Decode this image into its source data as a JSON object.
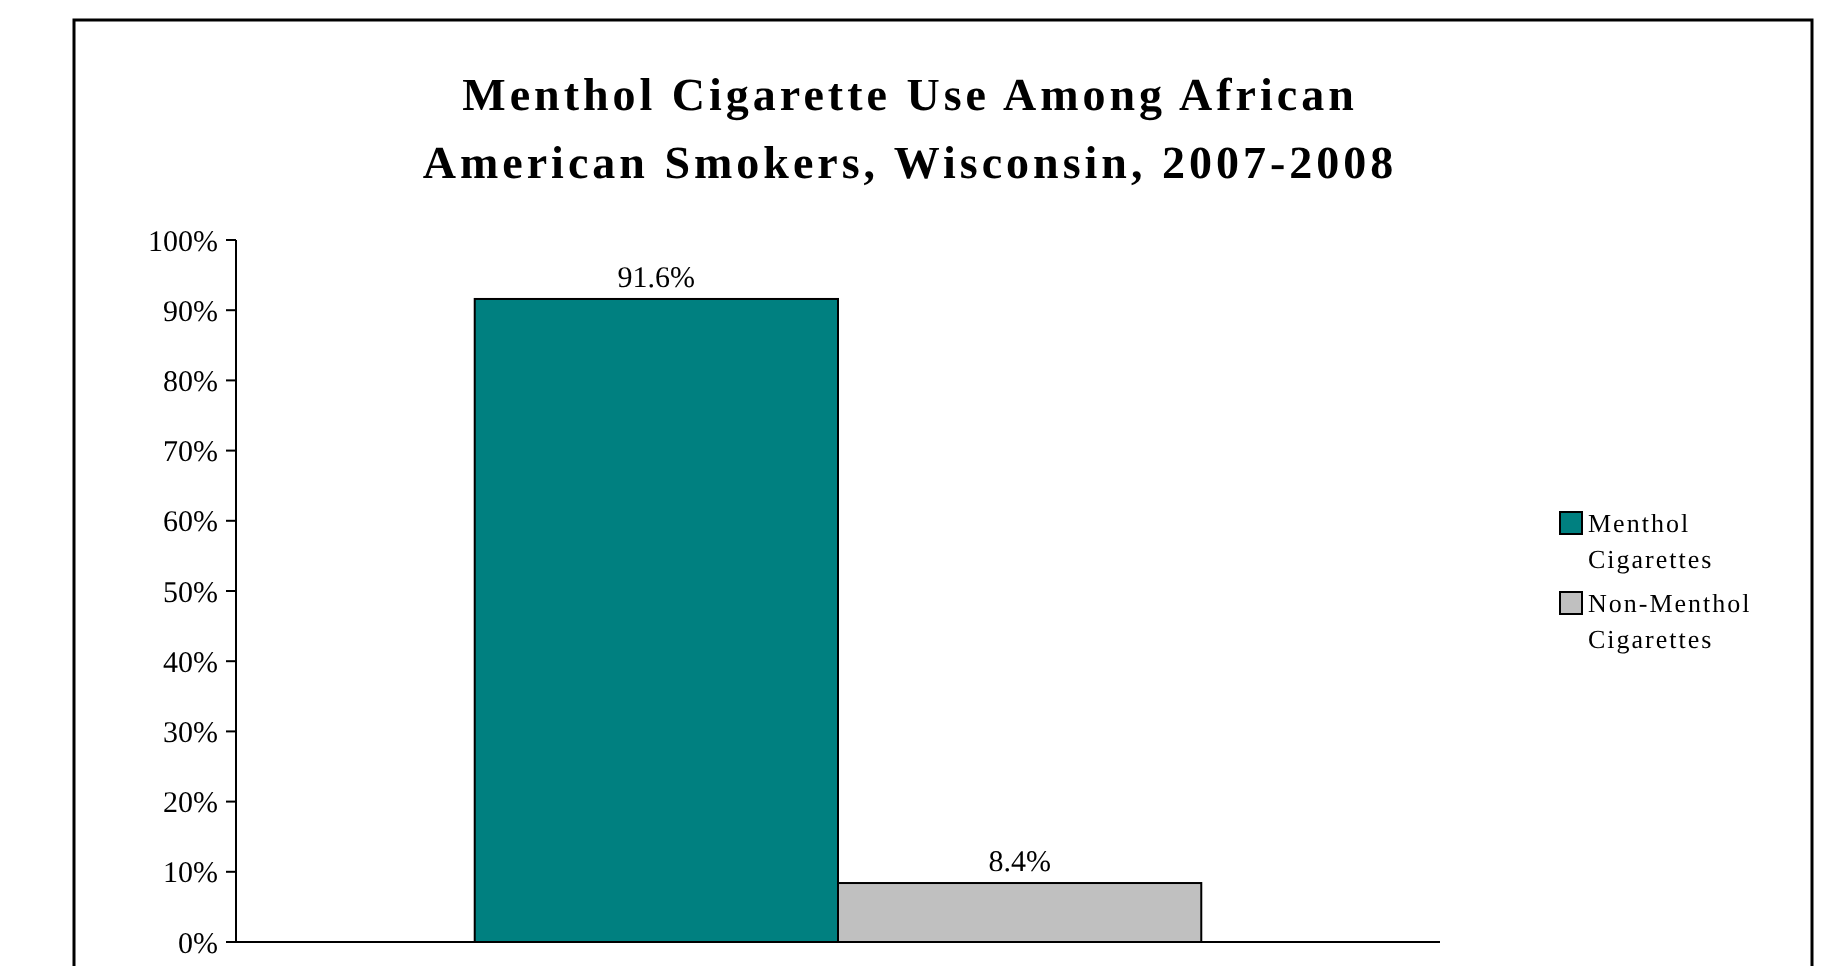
{
  "chart_data": {
    "type": "bar",
    "title": "Menthol Cigarette Use Among African American Smokers, Wisconsin, 2007-2008",
    "categories": [
      null
    ],
    "series": [
      {
        "name": "Menthol Cigarettes",
        "color": "#008080",
        "values": [
          91.6
        ]
      },
      {
        "name": "Non-Menthol Cigarettes",
        "color": "#c0c0c0",
        "values": [
          8.4
        ]
      }
    ],
    "ylim": [
      0,
      100
    ],
    "yticks": [
      {
        "value": 0,
        "label": "0%"
      },
      {
        "value": 10,
        "label": "10%"
      },
      {
        "value": 20,
        "label": "20%"
      },
      {
        "value": 30,
        "label": "30%"
      },
      {
        "value": 40,
        "label": "40%"
      },
      {
        "value": 50,
        "label": "50%"
      },
      {
        "value": 60,
        "label": "60%"
      },
      {
        "value": 70,
        "label": "70%"
      },
      {
        "value": 80,
        "label": "80%"
      },
      {
        "value": 90,
        "label": "90%"
      },
      {
        "value": 100,
        "label": "100%"
      }
    ],
    "value_labels": [
      [
        "91.6%"
      ],
      [
        "8.4%"
      ]
    ],
    "legend": "right",
    "grid": false
  }
}
